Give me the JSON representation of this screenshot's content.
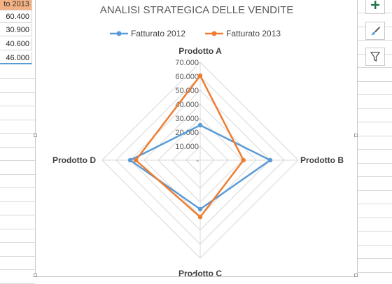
{
  "sheet": {
    "cells": [
      "to 2013",
      "60.400",
      "30.900",
      "40.600",
      "46.000"
    ]
  },
  "colors": {
    "series_2012": "#5b9bd5",
    "series_2013": "#ed7d31",
    "grid": "#d9d9d9",
    "header_fill": "#f4b183",
    "tool_plus": "#217346"
  },
  "tools": {
    "icons": [
      "plus-icon",
      "brush-icon",
      "filter-icon"
    ]
  },
  "chart_data": {
    "type": "radar",
    "title": "ANALISI STRATEGICA DELLE VENDITE",
    "categories": [
      "Prodotto A",
      "Prodotto B",
      "Prodotto C",
      "Prodotto D"
    ],
    "series": [
      {
        "name": "Fatturato 2012",
        "values": [
          25000,
          50000,
          35000,
          50000
        ]
      },
      {
        "name": "Fatturato 2013",
        "values": [
          60400,
          30900,
          40600,
          46000
        ]
      }
    ],
    "axis_ticks": [
      "-",
      "10.000",
      "20.000",
      "30.000",
      "40.000",
      "50.000",
      "60.000",
      "70.000"
    ],
    "rlim": [
      0,
      70000
    ],
    "legend_position": "top"
  }
}
